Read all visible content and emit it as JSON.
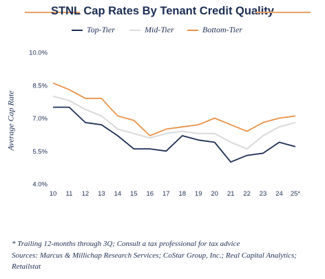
{
  "chart_data": {
    "type": "line",
    "title": "STNL Cap Rates By Tenant Credit Quality",
    "xlabel": "",
    "ylabel": "Average Cap Rate",
    "categories": [
      "10",
      "11",
      "12",
      "13",
      "14",
      "15",
      "16",
      "17",
      "18",
      "19",
      "20",
      "21",
      "22",
      "23",
      "24",
      "25*"
    ],
    "y_ticks": [
      "4.0%",
      "5.5%",
      "7.0%",
      "8.5%",
      "10.0%"
    ],
    "ylim": [
      4.0,
      10.0
    ],
    "grid": false,
    "legend_position": "top",
    "series": [
      {
        "name": "Top-Tier",
        "color": "#1c2d53",
        "values": [
          7.5,
          7.5,
          6.8,
          6.7,
          6.2,
          5.6,
          5.6,
          5.5,
          6.2,
          6.0,
          5.9,
          5.0,
          5.3,
          5.4,
          5.9,
          5.7
        ]
      },
      {
        "name": "Mid-Tier",
        "color": "#dcdcdc",
        "values": [
          8.0,
          7.8,
          7.4,
          7.1,
          6.5,
          6.3,
          6.1,
          6.3,
          6.4,
          6.3,
          6.3,
          5.9,
          5.6,
          6.2,
          6.6,
          6.8
        ]
      },
      {
        "name": "Bottom-Tier",
        "color": "#e9924a",
        "values": [
          8.6,
          8.3,
          7.9,
          7.9,
          7.1,
          6.9,
          6.2,
          6.5,
          6.6,
          6.7,
          7.0,
          6.7,
          6.4,
          6.8,
          7.0,
          7.1
        ]
      }
    ]
  },
  "footnote": {
    "line1": "* Trailing 12-months through 3Q; Consult a tax professional for tax advice",
    "line2": "Sources: Marcus & Millichap Research Services; CoStar Group, Inc.; Real Capital Analytics; Retailstat"
  }
}
